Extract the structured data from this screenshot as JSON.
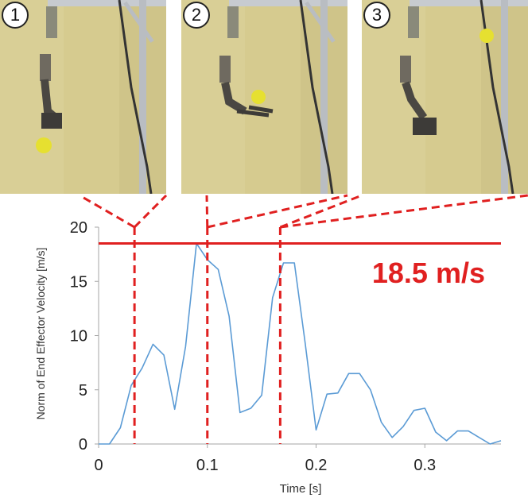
{
  "frames": [
    {
      "number": "1",
      "description": "robot arm throwing ball - frame 1"
    },
    {
      "number": "2",
      "description": "robot arm throwing ball - frame 2"
    },
    {
      "number": "3",
      "description": "robot arm throwing ball - frame 3"
    }
  ],
  "colors": {
    "line": "#5b9bd5",
    "marker": "#e02020",
    "axis": "#a6a6a6"
  },
  "chart_data": {
    "type": "line",
    "title": "",
    "xlabel": "Time [s]",
    "ylabel": "Norm of End Effector  Velocity [m/s]",
    "xlim": [
      0,
      0.37
    ],
    "ylim": [
      0,
      20
    ],
    "xticks": [
      0,
      0.1,
      0.2,
      0.3
    ],
    "xtick_labels": [
      "0",
      "0.1",
      "0.2",
      "0.3"
    ],
    "yticks": [
      0,
      5,
      10,
      15,
      20
    ],
    "ytick_labels": [
      "0",
      "5",
      "10",
      "15",
      "20"
    ],
    "series": [
      {
        "name": "End effector velocity",
        "x": [
          0,
          0.01,
          0.02,
          0.03,
          0.04,
          0.05,
          0.06,
          0.07,
          0.08,
          0.09,
          0.1,
          0.11,
          0.12,
          0.13,
          0.14,
          0.15,
          0.16,
          0.17,
          0.18,
          0.19,
          0.2,
          0.21,
          0.22,
          0.23,
          0.24,
          0.25,
          0.26,
          0.27,
          0.28,
          0.29,
          0.3,
          0.31,
          0.32,
          0.33,
          0.34,
          0.35,
          0.36,
          0.37
        ],
        "values": [
          0.0,
          0.0,
          1.5,
          5.4,
          7.0,
          9.2,
          8.2,
          3.2,
          9.0,
          18.5,
          17.0,
          16.1,
          11.8,
          2.9,
          3.3,
          4.5,
          13.5,
          16.7,
          16.7,
          9.3,
          1.3,
          4.6,
          4.7,
          6.5,
          6.5,
          5.0,
          2.0,
          0.6,
          1.6,
          3.1,
          3.3,
          1.1,
          0.3,
          1.2,
          1.2,
          0.6,
          0.0,
          0.3
        ]
      }
    ],
    "max_line": {
      "value": 18.5,
      "label": "18.5 m/s"
    },
    "frame_markers": [
      0.033,
      0.1,
      0.167
    ]
  }
}
